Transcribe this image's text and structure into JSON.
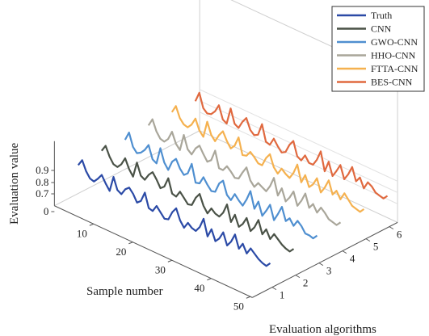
{
  "chart_data": {
    "type": "line",
    "title": "",
    "xlabel": "Sample number",
    "ylabel": "Evaluation algorithms",
    "zlabel": "Evaluation value",
    "x_ticks": [
      "10",
      "20",
      "30",
      "40",
      "50"
    ],
    "y_ticks": [
      "1",
      "2",
      "3",
      "4",
      "5",
      "6"
    ],
    "z_ticks": [
      "0",
      "0.7",
      "0.8",
      "0.9"
    ],
    "x": [
      1,
      2,
      3,
      4,
      5,
      6,
      7,
      8,
      9,
      10,
      11,
      12,
      13,
      14,
      15,
      16,
      17,
      18,
      19,
      20,
      21,
      22,
      23,
      24,
      25,
      26,
      27,
      28,
      29,
      30,
      31,
      32,
      33,
      34,
      35,
      36,
      37,
      38,
      39,
      40,
      41,
      42,
      43,
      44,
      45,
      46,
      47,
      48,
      49,
      50
    ],
    "legend_position": "top-right",
    "series": [
      {
        "name": "Truth",
        "algorithm": 1,
        "color": "#2b4aa6",
        "values": [
          0.82,
          0.88,
          0.8,
          0.75,
          0.74,
          0.78,
          0.83,
          0.77,
          0.72,
          0.86,
          0.76,
          0.74,
          0.8,
          0.83,
          0.79,
          0.73,
          0.76,
          0.85,
          0.73,
          0.72,
          0.78,
          0.74,
          0.7,
          0.71,
          0.79,
          0.84,
          0.75,
          0.7,
          0.76,
          0.73,
          0.72,
          0.77,
          0.86,
          0.72,
          0.8,
          0.71,
          0.75,
          0.82,
          0.72,
          0.77,
          0.85,
          0.74,
          0.8,
          0.73,
          0.79,
          0.76,
          0.73,
          0.71,
          0.7,
          0.74
        ]
      },
      {
        "name": "CNN",
        "algorithm": 2,
        "color": "#4a5247",
        "values": [
          0.84,
          0.9,
          0.82,
          0.77,
          0.76,
          0.8,
          0.87,
          0.79,
          0.74,
          0.88,
          0.78,
          0.76,
          0.82,
          0.86,
          0.81,
          0.75,
          0.78,
          0.87,
          0.75,
          0.74,
          0.8,
          0.76,
          0.72,
          0.73,
          0.81,
          0.86,
          0.77,
          0.72,
          0.78,
          0.75,
          0.74,
          0.79,
          0.88,
          0.74,
          0.82,
          0.73,
          0.77,
          0.84,
          0.74,
          0.79,
          0.87,
          0.76,
          0.82,
          0.75,
          0.81,
          0.78,
          0.75,
          0.73,
          0.72,
          0.76
        ]
      },
      {
        "name": "GWO-CNN",
        "algorithm": 3,
        "color": "#4f8fd0",
        "values": [
          0.83,
          0.91,
          0.8,
          0.76,
          0.78,
          0.82,
          0.88,
          0.77,
          0.75,
          0.9,
          0.79,
          0.74,
          0.83,
          0.87,
          0.8,
          0.76,
          0.79,
          0.89,
          0.74,
          0.75,
          0.82,
          0.77,
          0.73,
          0.74,
          0.83,
          0.87,
          0.76,
          0.73,
          0.8,
          0.76,
          0.73,
          0.8,
          0.89,
          0.75,
          0.83,
          0.72,
          0.78,
          0.85,
          0.73,
          0.8,
          0.88,
          0.77,
          0.81,
          0.76,
          0.82,
          0.79,
          0.74,
          0.74,
          0.73,
          0.77
        ]
      },
      {
        "name": "HHO-CNN",
        "algorithm": 4,
        "color": "#a9a69a",
        "values": [
          0.85,
          0.92,
          0.83,
          0.78,
          0.77,
          0.81,
          0.89,
          0.8,
          0.76,
          0.91,
          0.8,
          0.77,
          0.84,
          0.88,
          0.82,
          0.77,
          0.8,
          0.9,
          0.76,
          0.76,
          0.81,
          0.78,
          0.74,
          0.75,
          0.82,
          0.88,
          0.78,
          0.74,
          0.79,
          0.77,
          0.75,
          0.81,
          0.9,
          0.76,
          0.84,
          0.74,
          0.79,
          0.86,
          0.75,
          0.81,
          0.89,
          0.78,
          0.83,
          0.77,
          0.83,
          0.8,
          0.76,
          0.75,
          0.74,
          0.78
        ]
      },
      {
        "name": "FTTA-CNN",
        "algorithm": 5,
        "color": "#f5b14f",
        "values": [
          0.86,
          0.93,
          0.84,
          0.8,
          0.79,
          0.83,
          0.9,
          0.81,
          0.77,
          0.92,
          0.82,
          0.78,
          0.85,
          0.9,
          0.83,
          0.78,
          0.82,
          0.91,
          0.77,
          0.78,
          0.83,
          0.8,
          0.76,
          0.76,
          0.84,
          0.89,
          0.79,
          0.75,
          0.81,
          0.78,
          0.76,
          0.82,
          0.91,
          0.77,
          0.85,
          0.76,
          0.8,
          0.87,
          0.76,
          0.82,
          0.9,
          0.79,
          0.84,
          0.78,
          0.85,
          0.81,
          0.77,
          0.76,
          0.75,
          0.79
        ]
      },
      {
        "name": "BES-CNN",
        "algorithm": 6,
        "color": "#e0693f",
        "values": [
          0.85,
          0.94,
          0.82,
          0.79,
          0.8,
          0.84,
          0.91,
          0.8,
          0.78,
          0.93,
          0.81,
          0.79,
          0.86,
          0.91,
          0.82,
          0.79,
          0.81,
          0.92,
          0.78,
          0.77,
          0.84,
          0.79,
          0.75,
          0.77,
          0.85,
          0.9,
          0.78,
          0.76,
          0.82,
          0.77,
          0.77,
          0.83,
          0.92,
          0.76,
          0.86,
          0.75,
          0.81,
          0.88,
          0.77,
          0.83,
          0.91,
          0.8,
          0.85,
          0.77,
          0.84,
          0.82,
          0.78,
          0.77,
          0.76,
          0.8
        ]
      }
    ]
  }
}
